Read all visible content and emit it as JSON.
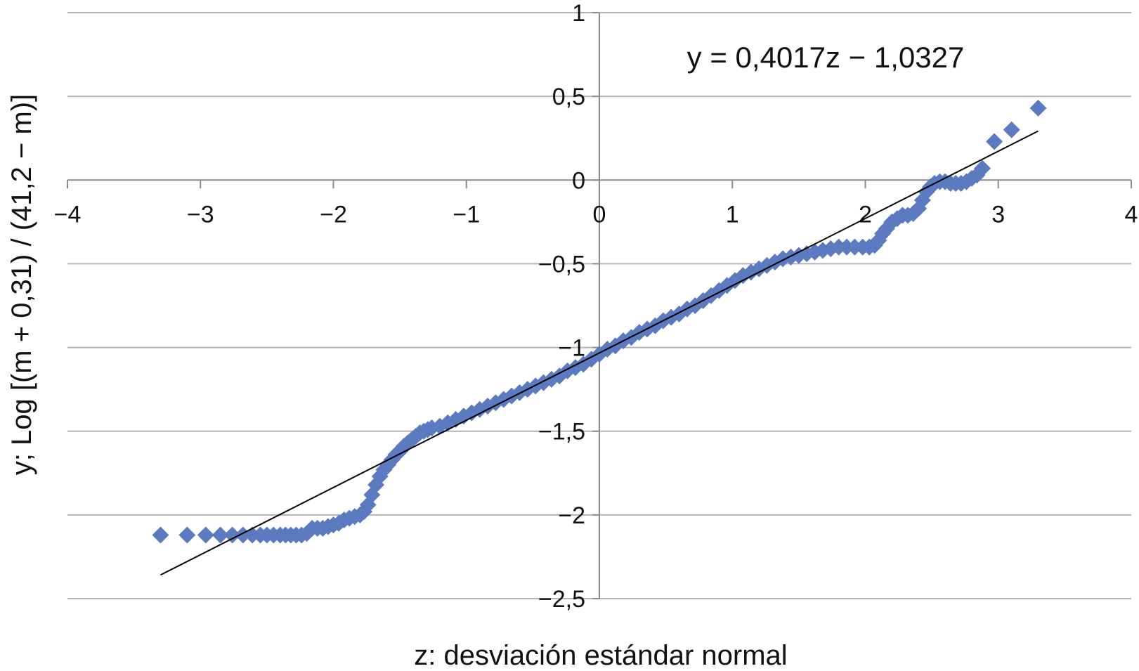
{
  "chart_data": {
    "type": "scatter",
    "title": "",
    "xlabel": "z: desviación estándar normal",
    "ylabel": "y; Log [(m + 0,31) / (41,2 − m)]",
    "xlim": [
      -4,
      4
    ],
    "ylim": [
      -2.5,
      1
    ],
    "x_ticks": [
      -4,
      -3,
      -2,
      -1,
      0,
      1,
      2,
      3,
      4
    ],
    "x_tick_labels": [
      "−4",
      "−3",
      "−2",
      "−1",
      "0",
      "1",
      "2",
      "3",
      "4"
    ],
    "y_ticks": [
      1,
      0.5,
      0,
      -0.5,
      -1,
      -1.5,
      -2,
      -2.5
    ],
    "y_tick_labels": [
      "1",
      "0,5",
      "0",
      "−0,5",
      "−1",
      "−1,5",
      "−2",
      "−2,5"
    ],
    "grid": "horizontal",
    "legend": "none",
    "annotations": [
      {
        "text": "y = 0,4017z − 1,0327"
      }
    ],
    "trendline": {
      "slope": 0.4017,
      "intercept": -1.0327,
      "x_range": [
        -3.3,
        3.3
      ]
    },
    "marker_color": "#5b7abf",
    "trendline_color": "#000000",
    "series": [
      {
        "marker": "diamond",
        "points": [
          [
            -3.3,
            -2.12
          ],
          [
            -3.1,
            -2.12
          ],
          [
            -2.96,
            -2.12
          ],
          [
            -2.85,
            -2.12
          ],
          [
            -2.76,
            -2.12
          ],
          [
            -2.68,
            -2.12
          ],
          [
            -2.61,
            -2.12
          ],
          [
            -2.55,
            -2.12
          ],
          [
            -2.5,
            -2.12
          ],
          [
            -2.45,
            -2.12
          ],
          [
            -2.4,
            -2.12
          ],
          [
            -2.36,
            -2.12
          ],
          [
            -2.32,
            -2.12
          ],
          [
            -2.28,
            -2.12
          ],
          [
            -2.24,
            -2.12
          ],
          [
            -2.2,
            -2.11
          ],
          [
            -2.16,
            -2.08
          ],
          [
            -2.12,
            -2.08
          ],
          [
            -2.08,
            -2.08
          ],
          [
            -2.04,
            -2.07
          ],
          [
            -2.0,
            -2.06
          ],
          [
            -1.96,
            -2.05
          ],
          [
            -1.92,
            -2.03
          ],
          [
            -1.88,
            -2.02
          ],
          [
            -1.84,
            -2.01
          ],
          [
            -1.8,
            -2.0
          ],
          [
            -1.77,
            -1.98
          ],
          [
            -1.74,
            -1.94
          ],
          [
            -1.71,
            -1.88
          ],
          [
            -1.68,
            -1.82
          ],
          [
            -1.65,
            -1.77
          ],
          [
            -1.62,
            -1.73
          ],
          [
            -1.59,
            -1.7
          ],
          [
            -1.56,
            -1.67
          ],
          [
            -1.53,
            -1.64
          ],
          [
            -1.5,
            -1.62
          ],
          [
            -1.47,
            -1.59
          ],
          [
            -1.44,
            -1.57
          ],
          [
            -1.41,
            -1.55
          ],
          [
            -1.38,
            -1.53
          ],
          [
            -1.35,
            -1.51
          ],
          [
            -1.32,
            -1.5
          ],
          [
            -1.29,
            -1.49
          ],
          [
            -1.26,
            -1.48
          ],
          [
            -1.2,
            -1.47
          ],
          [
            -1.14,
            -1.45
          ],
          [
            -1.08,
            -1.43
          ],
          [
            -1.02,
            -1.41
          ],
          [
            -0.96,
            -1.39
          ],
          [
            -0.9,
            -1.37
          ],
          [
            -0.84,
            -1.35
          ],
          [
            -0.78,
            -1.33
          ],
          [
            -0.72,
            -1.31
          ],
          [
            -0.66,
            -1.29
          ],
          [
            -0.6,
            -1.27
          ],
          [
            -0.54,
            -1.25
          ],
          [
            -0.48,
            -1.23
          ],
          [
            -0.42,
            -1.21
          ],
          [
            -0.36,
            -1.19
          ],
          [
            -0.3,
            -1.17
          ],
          [
            -0.24,
            -1.14
          ],
          [
            -0.18,
            -1.12
          ],
          [
            -0.12,
            -1.1
          ],
          [
            -0.06,
            -1.07
          ],
          [
            0.0,
            -1.04
          ],
          [
            0.06,
            -1.01
          ],
          [
            0.12,
            -0.99
          ],
          [
            0.18,
            -0.96
          ],
          [
            0.24,
            -0.94
          ],
          [
            0.3,
            -0.91
          ],
          [
            0.36,
            -0.89
          ],
          [
            0.42,
            -0.87
          ],
          [
            0.48,
            -0.84
          ],
          [
            0.54,
            -0.82
          ],
          [
            0.6,
            -0.8
          ],
          [
            0.66,
            -0.77
          ],
          [
            0.72,
            -0.75
          ],
          [
            0.78,
            -0.72
          ],
          [
            0.84,
            -0.69
          ],
          [
            0.9,
            -0.66
          ],
          [
            0.96,
            -0.63
          ],
          [
            1.02,
            -0.6
          ],
          [
            1.08,
            -0.57
          ],
          [
            1.14,
            -0.55
          ],
          [
            1.2,
            -0.53
          ],
          [
            1.26,
            -0.51
          ],
          [
            1.32,
            -0.49
          ],
          [
            1.38,
            -0.47
          ],
          [
            1.44,
            -0.46
          ],
          [
            1.5,
            -0.45
          ],
          [
            1.56,
            -0.44
          ],
          [
            1.62,
            -0.43
          ],
          [
            1.68,
            -0.42
          ],
          [
            1.74,
            -0.41
          ],
          [
            1.8,
            -0.4
          ],
          [
            1.86,
            -0.4
          ],
          [
            1.92,
            -0.4
          ],
          [
            1.98,
            -0.4
          ],
          [
            2.03,
            -0.4
          ],
          [
            2.07,
            -0.39
          ],
          [
            2.1,
            -0.36
          ],
          [
            2.13,
            -0.32
          ],
          [
            2.16,
            -0.29
          ],
          [
            2.2,
            -0.25
          ],
          [
            2.24,
            -0.23
          ],
          [
            2.28,
            -0.21
          ],
          [
            2.32,
            -0.21
          ],
          [
            2.36,
            -0.2
          ],
          [
            2.4,
            -0.17
          ],
          [
            2.43,
            -0.12
          ],
          [
            2.46,
            -0.07
          ],
          [
            2.49,
            -0.04
          ],
          [
            2.52,
            -0.02
          ],
          [
            2.56,
            -0.01
          ],
          [
            2.6,
            -0.01
          ],
          [
            2.64,
            -0.02
          ],
          [
            2.68,
            -0.02
          ],
          [
            2.72,
            -0.02
          ],
          [
            2.76,
            -0.01
          ],
          [
            2.8,
            0.01
          ],
          [
            2.84,
            0.03
          ],
          [
            2.88,
            0.07
          ],
          [
            2.97,
            0.23
          ],
          [
            3.1,
            0.3
          ],
          [
            3.3,
            0.43
          ]
        ]
      }
    ]
  }
}
